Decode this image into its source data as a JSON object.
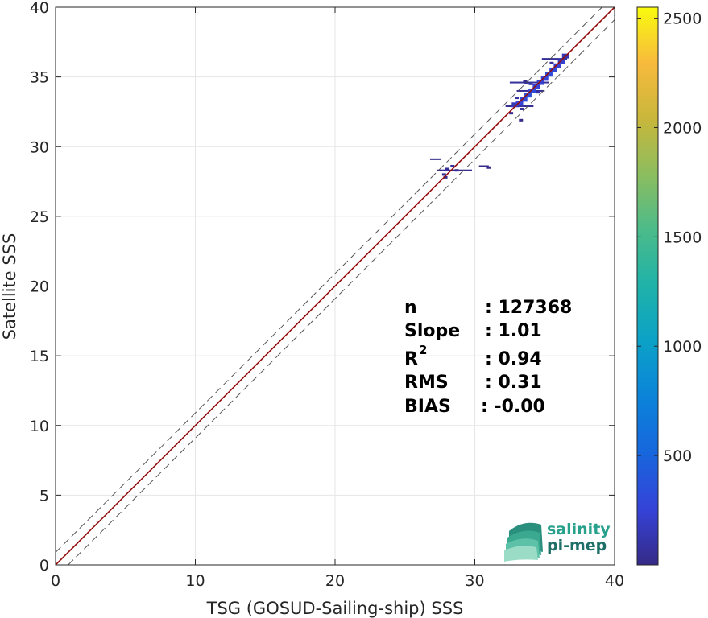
{
  "chart_data": {
    "type": "heatmap",
    "xlabel": "TSG (GOSUD-Sailing-ship) SSS",
    "ylabel": "Satellite SSS",
    "xlim": [
      0,
      40
    ],
    "ylim": [
      0,
      40
    ],
    "x_ticks": [
      "0",
      "10",
      "20",
      "30",
      "40"
    ],
    "y_ticks": [
      "0",
      "5",
      "10",
      "15",
      "20",
      "25",
      "30",
      "35",
      "40"
    ],
    "grid": true,
    "colorbar": {
      "min": 0,
      "max": 2550,
      "ticks": [
        "500",
        "1000",
        "1500",
        "2000",
        "2500"
      ],
      "colormap": "parula"
    },
    "reference_lines": [
      {
        "name": "1:1 line",
        "slope": 1,
        "intercept": 0,
        "color": "#c81414",
        "style": "solid"
      },
      {
        "name": "upper bound",
        "slope": 1,
        "intercept": 0.9,
        "color": "#555555",
        "style": "dashed"
      },
      {
        "name": "lower bound",
        "slope": 1,
        "intercept": -0.9,
        "color": "#555555",
        "style": "dashed"
      }
    ],
    "fit_line": {
      "slope": 1.0,
      "intercept": 0.0,
      "color": "#7a1010"
    },
    "stats": {
      "n_label": "n",
      "n_value": ": 127368",
      "slope_label": "Slope",
      "slope_value": ": 1.01",
      "r2_label": "R",
      "r2_sup": "2",
      "r2_value": ": 0.94",
      "rms_label": "RMS",
      "rms_value": ": 0.31",
      "bias_label": "BIAS",
      "bias_value": ": -0.00"
    },
    "density_points": [
      {
        "x": 32.9,
        "y": 33.0,
        "v": 150
      },
      {
        "x": 33.2,
        "y": 33.1,
        "v": 250
      },
      {
        "x": 33.5,
        "y": 33.4,
        "v": 300
      },
      {
        "x": 33.8,
        "y": 33.7,
        "v": 350
      },
      {
        "x": 34.1,
        "y": 34.0,
        "v": 300
      },
      {
        "x": 34.4,
        "y": 34.3,
        "v": 260
      },
      {
        "x": 34.7,
        "y": 34.6,
        "v": 220
      },
      {
        "x": 35.0,
        "y": 34.9,
        "v": 260
      },
      {
        "x": 35.3,
        "y": 35.2,
        "v": 330
      },
      {
        "x": 35.6,
        "y": 35.5,
        "v": 300
      },
      {
        "x": 35.9,
        "y": 35.8,
        "v": 250
      },
      {
        "x": 36.2,
        "y": 36.1,
        "v": 220
      },
      {
        "x": 36.5,
        "y": 36.5,
        "v": 120
      },
      {
        "x": 33.0,
        "y": 33.5,
        "v": 80
      },
      {
        "x": 34.0,
        "y": 34.5,
        "v": 100
      },
      {
        "x": 34.5,
        "y": 33.9,
        "v": 90
      },
      {
        "x": 35.5,
        "y": 36.0,
        "v": 80
      },
      {
        "x": 33.4,
        "y": 32.7,
        "v": 60
      },
      {
        "x": 32.6,
        "y": 32.4,
        "v": 40
      },
      {
        "x": 33.7,
        "y": 34.6,
        "v": 50
      },
      {
        "x": 28.0,
        "y": 28.4,
        "v": 60
      },
      {
        "x": 28.4,
        "y": 28.6,
        "v": 70
      },
      {
        "x": 27.8,
        "y": 28.0,
        "v": 40
      },
      {
        "x": 28.7,
        "y": 28.3,
        "v": 30
      },
      {
        "x": 27.9,
        "y": 27.8,
        "v": 20
      },
      {
        "x": 31.0,
        "y": 28.5,
        "v": 10
      },
      {
        "x": 33.3,
        "y": 31.9,
        "v": 10
      },
      {
        "x": 33.6,
        "y": 34.7,
        "v": 15
      }
    ],
    "horizontal_streaks": [
      {
        "x0": 32.5,
        "x1": 35.3,
        "y": 34.6,
        "v": 60
      },
      {
        "x0": 32.2,
        "x1": 34.2,
        "y": 32.9,
        "v": 40
      },
      {
        "x0": 27.3,
        "x1": 29.8,
        "y": 28.3,
        "v": 35
      },
      {
        "x0": 26.8,
        "x1": 27.6,
        "y": 29.1,
        "v": 20
      },
      {
        "x0": 30.3,
        "x1": 31.0,
        "y": 28.6,
        "v": 15
      },
      {
        "x0": 34.8,
        "x1": 36.6,
        "y": 36.3,
        "v": 50
      },
      {
        "x0": 33.0,
        "x1": 35.0,
        "y": 34.0,
        "v": 45
      }
    ]
  },
  "logo": {
    "line1": "salinity",
    "line2": "pi-mep",
    "color1": "#27a08c",
    "color2": "#1e6f68"
  }
}
